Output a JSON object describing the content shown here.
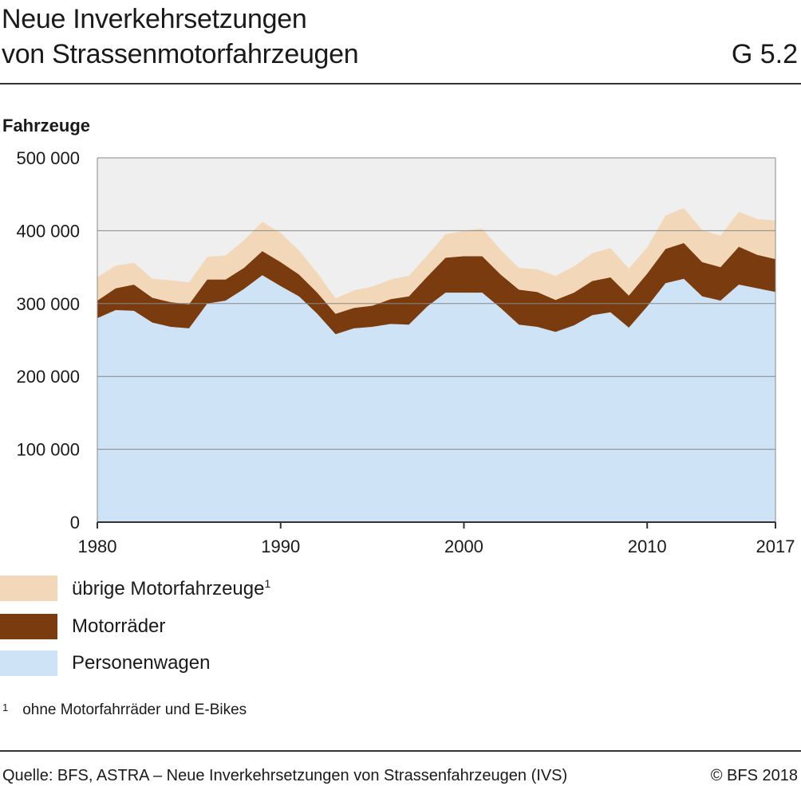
{
  "header": {
    "title_line1": "Neue Inverkehrsetzungen",
    "title_line2": "von Strassenmotorfahrzeugen",
    "code": "G 5.2"
  },
  "chart_data": {
    "type": "area",
    "stacked": true,
    "ylabel": "Fahrzeuge",
    "ylim": [
      0,
      500000
    ],
    "yticks": [
      0,
      100000,
      200000,
      300000,
      400000,
      500000
    ],
    "ytick_labels": [
      "0",
      "100 000",
      "200 000",
      "300 000",
      "400 000",
      "500 000"
    ],
    "xlim": [
      1980,
      2017
    ],
    "xticks": [
      1980,
      1990,
      2000,
      2010,
      2017
    ],
    "xtick_labels": [
      "1980",
      "1990",
      "2000",
      "2010",
      "2017"
    ],
    "grid": true,
    "legend_placement": "bottom-left",
    "x": [
      1980,
      1981,
      1982,
      1983,
      1984,
      1985,
      1986,
      1987,
      1988,
      1989,
      1990,
      1991,
      1992,
      1993,
      1994,
      1995,
      1996,
      1997,
      1998,
      1999,
      2000,
      2001,
      2002,
      2003,
      2004,
      2005,
      2006,
      2007,
      2008,
      2009,
      2010,
      2011,
      2012,
      2013,
      2014,
      2015,
      2016,
      2017
    ],
    "series": [
      {
        "name": "Personenwagen",
        "color": "#cfe3f7",
        "values": [
          280000,
          291000,
          290000,
          274000,
          268000,
          266000,
          300000,
          304000,
          320000,
          339000,
          324000,
          310000,
          286000,
          258000,
          266000,
          268000,
          272000,
          271000,
          296000,
          315000,
          315000,
          315000,
          294000,
          271000,
          268000,
          261000,
          270000,
          284000,
          288000,
          267000,
          296000,
          328000,
          334000,
          310000,
          304000,
          326000,
          321000,
          316000
        ]
      },
      {
        "name": "Motorräder",
        "color": "#7a3c0f",
        "values": [
          24000,
          30000,
          36000,
          34000,
          34000,
          33000,
          33000,
          29000,
          29000,
          33000,
          33000,
          30000,
          29000,
          28000,
          28000,
          29000,
          34000,
          39000,
          41000,
          48000,
          50000,
          50000,
          46000,
          48000,
          48000,
          44000,
          45000,
          47000,
          48000,
          44000,
          45000,
          47000,
          49000,
          47000,
          46000,
          52000,
          46000,
          45000
        ]
      },
      {
        "name": "übrige Motorfahrzeuge",
        "color": "#f2d7b8",
        "values": [
          32000,
          31000,
          30000,
          26000,
          30000,
          30000,
          31000,
          33000,
          38000,
          40000,
          40000,
          33000,
          27000,
          21000,
          24000,
          26000,
          27000,
          28000,
          29000,
          32000,
          35000,
          38000,
          34000,
          30000,
          31000,
          33000,
          36000,
          38000,
          40000,
          37000,
          36000,
          46000,
          48000,
          44000,
          43000,
          48000,
          49000,
          53000
        ]
      }
    ]
  },
  "legend": {
    "items": [
      {
        "label": "übrige Motorfahrzeuge",
        "sup": "1",
        "color": "#f2d7b8"
      },
      {
        "label": "Motorräder",
        "sup": "",
        "color": "#7a3c0f"
      },
      {
        "label": "Personenwagen",
        "sup": "",
        "color": "#cfe3f7"
      }
    ]
  },
  "footnote": {
    "mark": "1",
    "text": "ohne Motorfahrräder und E-Bikes"
  },
  "footer": {
    "source": "Quelle: BFS, ASTRA – Neue Inverkehrsetzungen von Strassenfahrzeugen (IVS)",
    "copyright": "© BFS 2018"
  },
  "colors": {
    "plot_background": "#efefef",
    "axis": "#333333",
    "gridline": "#888888"
  }
}
